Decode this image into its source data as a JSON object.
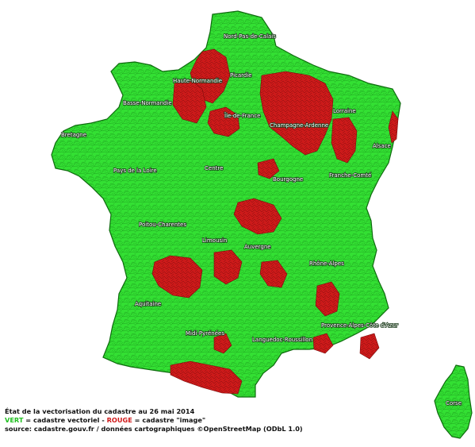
{
  "map": {
    "regions": [
      {
        "name": "Nord-Pas-de-Calais"
      },
      {
        "name": "Picardie"
      },
      {
        "name": "Haute-Normandie"
      },
      {
        "name": "Basse-Normandie"
      },
      {
        "name": "Île-de-France"
      },
      {
        "name": "Champagne-Ardenne"
      },
      {
        "name": "Lorraine"
      },
      {
        "name": "Alsace"
      },
      {
        "name": "Bretagne"
      },
      {
        "name": "Pays de la Loire"
      },
      {
        "name": "Centre"
      },
      {
        "name": "Bourgogne"
      },
      {
        "name": "Franche-Comté"
      },
      {
        "name": "Poitou-Charentes"
      },
      {
        "name": "Limousin"
      },
      {
        "name": "Auvergne"
      },
      {
        "name": "Rhône-Alpes"
      },
      {
        "name": "Aquitaine"
      },
      {
        "name": "Midi-Pyrénées"
      },
      {
        "name": "Languedoc-Roussillon"
      },
      {
        "name": "Provence-Alpes-Côte d'Azur"
      },
      {
        "name": "Corse"
      }
    ],
    "colors": {
      "vectoriel": "#2ee02e",
      "image": "#cc1a1a",
      "border": "#0e6b0e"
    }
  },
  "legend": {
    "line1": "État de la vectorisation du cadastre au 26 mai 2014",
    "green_word": "VERT",
    "green_text": " = cadastre vectoriel - ",
    "red_word": "ROUGE",
    "red_text": " = cadastre \"image\"",
    "line3": "source: cadastre.gouv.fr / données cartographiques ©OpenStreetMap (ODbL 1.0)"
  }
}
